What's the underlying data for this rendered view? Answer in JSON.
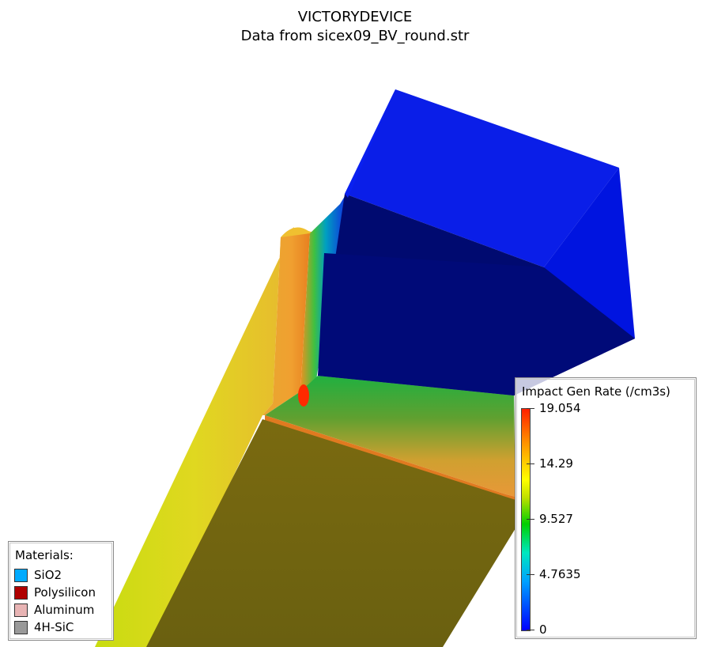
{
  "header": {
    "title": "VICTORYDEVICE",
    "subtitle": "Data from sicex09_BV_round.str"
  },
  "colorbar": {
    "title": "Impact Gen Rate (/cm3s)",
    "max_label": "19.054",
    "ticks": [
      {
        "label": "19.054",
        "value": 19.054
      },
      {
        "label": "14.29",
        "value": 14.29
      },
      {
        "label": "9.527",
        "value": 9.527
      },
      {
        "label": "4.7635",
        "value": 4.7635
      },
      {
        "label": "0",
        "value": 0
      }
    ],
    "range": [
      0,
      19.054
    ]
  },
  "materials": {
    "title": "Materials:",
    "items": [
      {
        "label": "SiO2",
        "color": "#00aaff"
      },
      {
        "label": "Polysilicon",
        "color": "#b00000"
      },
      {
        "label": "Aluminum",
        "color": "#e8b4b4"
      },
      {
        "label": "4H-SiC",
        "color": "#999999"
      }
    ]
  }
}
